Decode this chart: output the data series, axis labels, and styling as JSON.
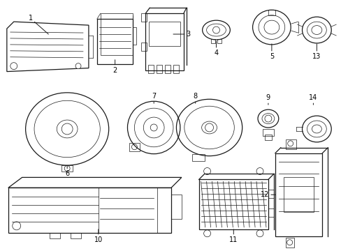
{
  "background_color": "#ffffff",
  "line_color": "#1a1a1a",
  "label_color": "#000000",
  "figsize": [
    4.89,
    3.6
  ],
  "dpi": 100,
  "lw_main": 0.9,
  "lw_inner": 0.5,
  "fontsize": 7
}
